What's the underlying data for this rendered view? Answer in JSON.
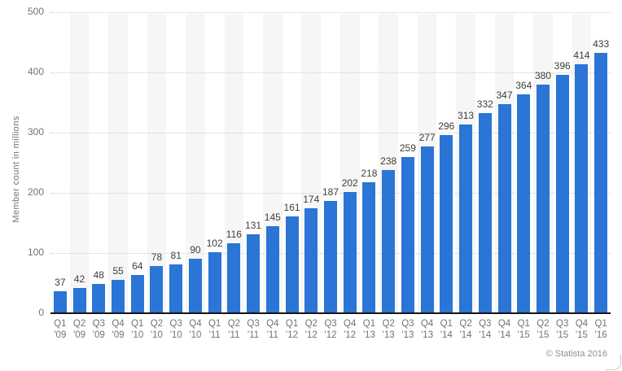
{
  "chart": {
    "copyright": "© Statista 2016",
    "yticks": [
      0,
      100,
      200,
      300,
      400,
      500
    ]
  },
  "chart_data": {
    "type": "bar",
    "title": "",
    "xlabel": "",
    "ylabel": "Member count in millions",
    "ylim": [
      0,
      500
    ],
    "grid": "horizontal-dotted",
    "legend": "none",
    "bar_color": "#2a75d6",
    "stripe_color": "#f6f6f6",
    "categories": [
      "Q1 '09",
      "Q2 '09",
      "Q3 '09",
      "Q4 '09",
      "Q1 '10",
      "Q2 '10",
      "Q3 '10",
      "Q4 '10",
      "Q1 '11",
      "Q2 '11",
      "Q3 '11",
      "Q4 '11",
      "Q1 '12",
      "Q2 '12",
      "Q3 '12",
      "Q4 '12",
      "Q1 '13",
      "Q2 '13",
      "Q3 '13",
      "Q4 '13",
      "Q1 '14",
      "Q2 '14",
      "Q3 '14",
      "Q4 '14",
      "Q1 '15",
      "Q2 '15",
      "Q3 '15",
      "Q4 '15",
      "Q1 '16"
    ],
    "values": [
      37,
      42,
      48,
      55,
      64,
      78,
      81,
      90,
      102,
      116,
      131,
      145,
      161,
      174,
      187,
      202,
      218,
      238,
      259,
      277,
      296,
      313,
      332,
      347,
      364,
      380,
      396,
      414,
      433
    ]
  }
}
